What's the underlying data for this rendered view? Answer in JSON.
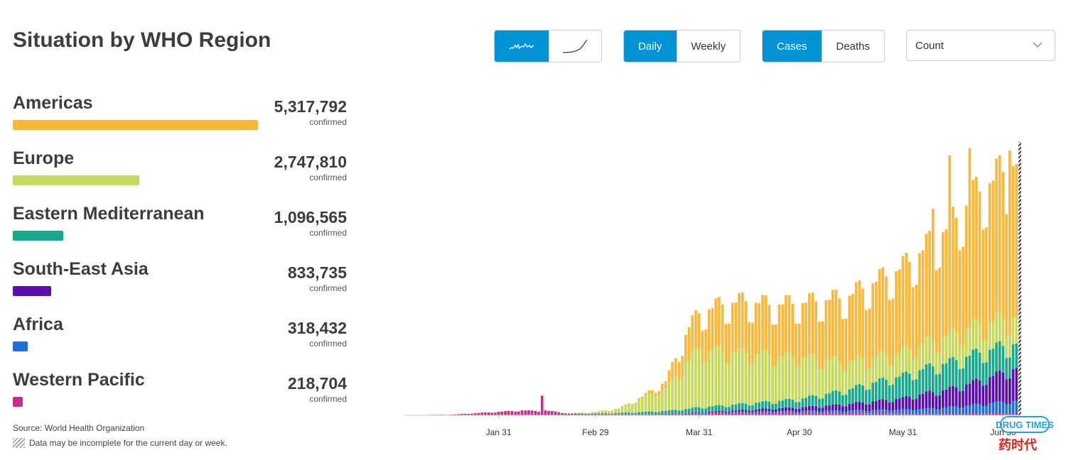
{
  "title": "Situation by WHO Region",
  "controls": {
    "chart_mode": [
      {
        "icon": "daily-curve-icon",
        "active": true
      },
      {
        "icon": "cumulative-curve-icon",
        "active": false
      }
    ],
    "period": [
      {
        "label": "Daily",
        "active": true
      },
      {
        "label": "Weekly",
        "active": false
      }
    ],
    "metric": [
      {
        "label": "Cases",
        "active": true
      },
      {
        "label": "Deaths",
        "active": false
      }
    ],
    "scale": {
      "selected": "Count"
    }
  },
  "colors": {
    "accent": "#0093d5",
    "Americas": "#fbb838",
    "Europe": "#c6d95c",
    "Eastern Mediterranean": "#17a98c",
    "South-East Asia": "#5a0fac",
    "Africa": "#1a72d9",
    "Western Pacific": "#c82d8b"
  },
  "regions": [
    {
      "name": "Americas",
      "value": "5,317,792",
      "label": "confirmed",
      "color": "#fbb838"
    },
    {
      "name": "Europe",
      "value": "2,747,810",
      "label": "confirmed",
      "color": "#c6d95c"
    },
    {
      "name": "Eastern Mediterranean",
      "value": "1,096,565",
      "label": "confirmed",
      "color": "#17a98c"
    },
    {
      "name": "South-East Asia",
      "value": "833,735",
      "label": "confirmed",
      "color": "#5a0fac"
    },
    {
      "name": "Africa",
      "value": "318,432",
      "label": "confirmed",
      "color": "#1a72d9"
    },
    {
      "name": "Western Pacific",
      "value": "218,704",
      "label": "confirmed",
      "color": "#c82d8b"
    }
  ],
  "source": "Source:  World Health Organization",
  "note": "Data may be incomplete for the current day or week.",
  "watermark": {
    "brand": "DRUG TIMES",
    "sub": "药时代"
  },
  "chart_data": {
    "type": "bar",
    "stacked": true,
    "x_ticks": [
      "Jan 31",
      "Feb 29",
      "Mar 31",
      "Apr 30",
      "May 31",
      "Jun 30"
    ],
    "x_range": [
      "Jan 03",
      "Jul 05"
    ],
    "ylim": [
      0,
      220000
    ],
    "last_bar_incomplete": true,
    "weekly_points": [
      {
        "date": "Jan 03",
        "totals": [
          0,
          0,
          0,
          0,
          0,
          200
        ]
      },
      {
        "date": "Jan 10",
        "totals": [
          0,
          0,
          0,
          0,
          0,
          300
        ]
      },
      {
        "date": "Jan 17",
        "totals": [
          0,
          0,
          0,
          0,
          0,
          500
        ]
      },
      {
        "date": "Jan 24",
        "totals": [
          0,
          0,
          0,
          0,
          0,
          1500
        ]
      },
      {
        "date": "Jan 31",
        "totals": [
          0,
          0,
          0,
          0,
          0,
          2500
        ]
      },
      {
        "date": "Feb 07",
        "totals": [
          0,
          0,
          0,
          0,
          0,
          3500
        ]
      },
      {
        "date": "Feb 12",
        "totals": [
          0,
          0,
          0,
          0,
          0,
          3000
        ]
      },
      {
        "date": "Feb 13",
        "totals": [
          0,
          0,
          0,
          0,
          0,
          17000
        ]
      },
      {
        "date": "Feb 14",
        "totals": [
          0,
          0,
          0,
          0,
          0,
          3500
        ]
      },
      {
        "date": "Feb 21",
        "totals": [
          0,
          100,
          100,
          0,
          0,
          1200
        ]
      },
      {
        "date": "Feb 29",
        "totals": [
          50,
          1000,
          500,
          0,
          0,
          800
        ]
      },
      {
        "date": "Mar 07",
        "totals": [
          200,
          3000,
          1000,
          0,
          0,
          700
        ]
      },
      {
        "date": "Mar 14",
        "totals": [
          1000,
          10000,
          1500,
          0,
          0,
          800
        ]
      },
      {
        "date": "Mar 21",
        "totals": [
          5000,
          16000,
          2000,
          50,
          100,
          1000
        ]
      },
      {
        "date": "Mar 28",
        "totals": [
          23000,
          35000,
          3000,
          200,
          300,
          1200
        ]
      },
      {
        "date": "Mar 31",
        "totals": [
          26000,
          41000,
          3500,
          400,
          500,
          1300
        ]
      },
      {
        "date": "Apr 07",
        "totals": [
          34000,
          38000,
          4000,
          800,
          700,
          1500
        ]
      },
      {
        "date": "Apr 14",
        "totals": [
          37000,
          36000,
          4500,
          1200,
          900,
          1700
        ]
      },
      {
        "date": "Apr 21",
        "totals": [
          36000,
          33000,
          5000,
          1800,
          1100,
          1800
        ]
      },
      {
        "date": "Apr 30",
        "totals": [
          38000,
          30000,
          6000,
          2500,
          1300,
          1800
        ]
      },
      {
        "date": "May 07",
        "totals": [
          42000,
          25000,
          8000,
          3500,
          1600,
          1600
        ]
      },
      {
        "date": "May 14",
        "totals": [
          46000,
          20000,
          10000,
          4500,
          1900,
          1500
        ]
      },
      {
        "date": "May 21",
        "totals": [
          52000,
          18000,
          13000,
          6000,
          2300,
          1400
        ]
      },
      {
        "date": "May 31",
        "totals": [
          60000,
          17000,
          16000,
          8000,
          2800,
          1300
        ]
      },
      {
        "date": "Jun 07",
        "totals": [
          68000,
          18000,
          18000,
          11000,
          3500,
          1200
        ]
      },
      {
        "date": "Jun 14",
        "totals": [
          78000,
          19000,
          19000,
          13000,
          4500,
          1200
        ]
      },
      {
        "date": "Jun 21",
        "totals": [
          92000,
          20000,
          20000,
          16000,
          6000,
          1300
        ]
      },
      {
        "date": "Jun 30",
        "totals": [
          105000,
          19000,
          19000,
          21000,
          8000,
          1400
        ]
      },
      {
        "date": "Jul 05",
        "totals": [
          110000,
          19000,
          17000,
          24000,
          9000,
          1500
        ]
      }
    ],
    "spikes": [
      {
        "date": "Jun 14",
        "Americas": 124000
      },
      {
        "date": "Jun 20",
        "Americas": 128000
      },
      {
        "date": "Jul 02",
        "Americas": 132000
      },
      {
        "date": "Jun 09",
        "Americas": 94000
      }
    ]
  }
}
